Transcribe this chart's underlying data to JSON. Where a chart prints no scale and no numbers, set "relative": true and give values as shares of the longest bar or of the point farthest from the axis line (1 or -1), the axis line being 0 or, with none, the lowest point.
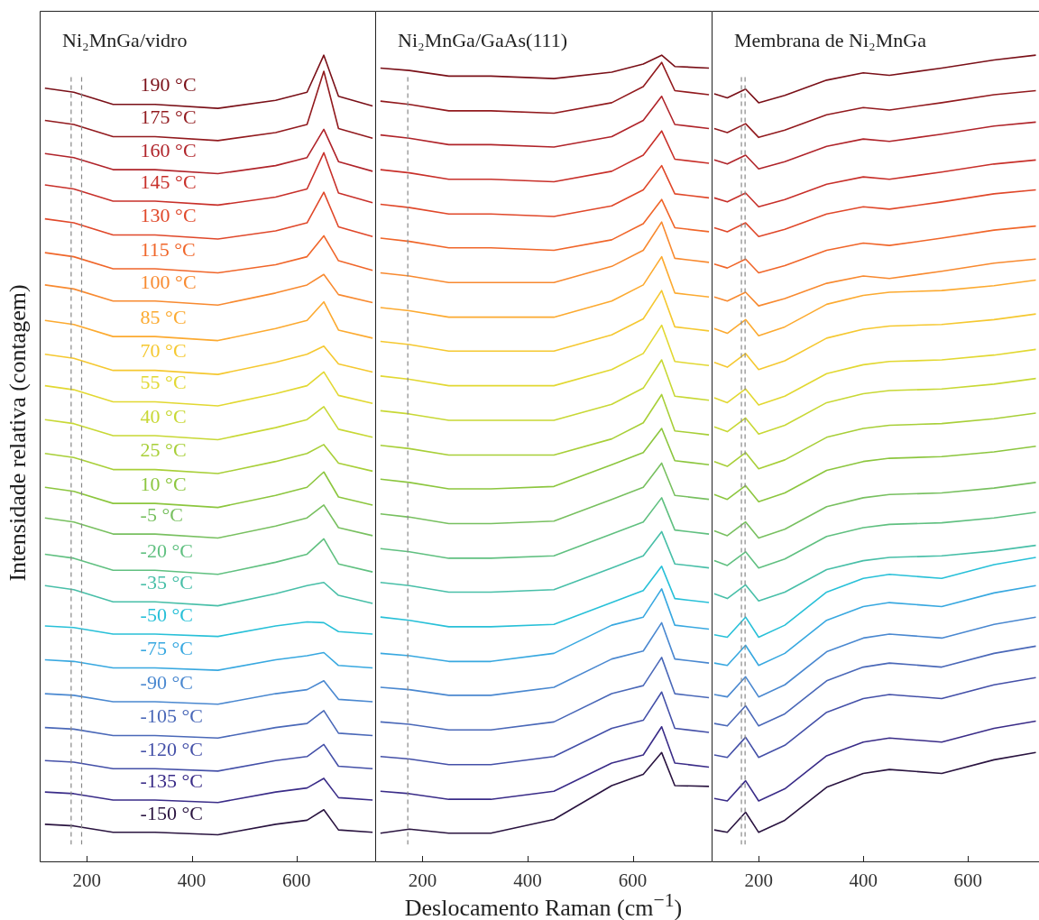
{
  "chart_data": [
    {
      "type": "line",
      "title": "Ni₂MnGa/vidro",
      "ylabel": "Intensidade relativa (contagem)",
      "relative": true,
      "tick_labels": "x",
      "grid": false,
      "legend": false,
      "xlim": [
        110,
        750
      ],
      "xticks": [
        200,
        400,
        600
      ],
      "x": [
        120,
        175,
        250,
        330,
        450,
        560,
        620,
        652,
        680,
        745
      ],
      "ref_lines": [
        {
          "axis": "x",
          "value": 170,
          "color": "#888888",
          "line_style": "dashed"
        },
        {
          "axis": "x",
          "value": 190,
          "color": "#888888",
          "line_style": "dashed"
        }
      ],
      "series": [
        {
          "name": "190 °C",
          "color": "#7a1018",
          "values": [
            0.959,
            0.954,
            0.939,
            0.939,
            0.934,
            0.944,
            0.954,
            1.0,
            0.949,
            0.937
          ]
        },
        {
          "name": "175 °C",
          "color": "#921a1e",
          "values": [
            0.919,
            0.914,
            0.899,
            0.899,
            0.894,
            0.904,
            0.914,
            0.98,
            0.909,
            0.897
          ]
        },
        {
          "name": "160 °C",
          "color": "#b0242a",
          "values": [
            0.878,
            0.873,
            0.858,
            0.858,
            0.853,
            0.863,
            0.873,
            0.908,
            0.868,
            0.856
          ]
        },
        {
          "name": "145 °C",
          "color": "#c8302a",
          "values": [
            0.839,
            0.834,
            0.819,
            0.819,
            0.814,
            0.824,
            0.834,
            0.879,
            0.829,
            0.817
          ]
        },
        {
          "name": "130 °C",
          "color": "#e0482a",
          "values": [
            0.797,
            0.792,
            0.777,
            0.777,
            0.772,
            0.782,
            0.792,
            0.83,
            0.787,
            0.775
          ]
        },
        {
          "name": "115 °C",
          "color": "#f0662a",
          "values": [
            0.755,
            0.75,
            0.735,
            0.735,
            0.73,
            0.74,
            0.75,
            0.776,
            0.745,
            0.733
          ]
        },
        {
          "name": "100 °C",
          "color": "#f88a30",
          "values": [
            0.715,
            0.71,
            0.695,
            0.695,
            0.69,
            0.705,
            0.715,
            0.728,
            0.703,
            0.693
          ]
        },
        {
          "name": "85 °C",
          "color": "#fcaa30",
          "values": [
            0.671,
            0.666,
            0.651,
            0.651,
            0.646,
            0.661,
            0.671,
            0.694,
            0.659,
            0.649
          ]
        },
        {
          "name": "70 °C",
          "color": "#f5c830",
          "values": [
            0.629,
            0.624,
            0.609,
            0.609,
            0.604,
            0.619,
            0.629,
            0.639,
            0.617,
            0.607
          ]
        },
        {
          "name": "55 °C",
          "color": "#e2d832",
          "values": [
            0.59,
            0.585,
            0.57,
            0.57,
            0.565,
            0.58,
            0.59,
            0.607,
            0.578,
            0.568
          ]
        },
        {
          "name": "40 °C",
          "color": "#c8d835",
          "values": [
            0.548,
            0.543,
            0.528,
            0.528,
            0.523,
            0.538,
            0.548,
            0.564,
            0.536,
            0.526
          ]
        },
        {
          "name": "25 °C",
          "color": "#a8cf38",
          "values": [
            0.506,
            0.501,
            0.486,
            0.486,
            0.481,
            0.496,
            0.506,
            0.517,
            0.494,
            0.484
          ]
        },
        {
          "name": "10 °C",
          "color": "#8cc63e",
          "values": [
            0.464,
            0.459,
            0.444,
            0.444,
            0.439,
            0.454,
            0.464,
            0.483,
            0.452,
            0.442
          ]
        },
        {
          "name": "-5 °C",
          "color": "#78c060",
          "values": [
            0.426,
            0.421,
            0.406,
            0.406,
            0.401,
            0.416,
            0.426,
            0.442,
            0.414,
            0.404
          ]
        },
        {
          "name": "-20 °C",
          "color": "#60c080",
          "values": [
            0.381,
            0.376,
            0.361,
            0.361,
            0.356,
            0.371,
            0.381,
            0.4,
            0.369,
            0.359
          ]
        },
        {
          "name": "-35 °C",
          "color": "#48bfa8",
          "values": [
            0.342,
            0.337,
            0.322,
            0.322,
            0.317,
            0.332,
            0.342,
            0.346,
            0.33,
            0.32
          ]
        },
        {
          "name": "-50 °C",
          "color": "#28c0d8",
          "values": [
            0.292,
            0.29,
            0.282,
            0.282,
            0.279,
            0.292,
            0.297,
            0.296,
            0.285,
            0.282
          ]
        },
        {
          "name": "-75 °C",
          "color": "#38a8e0",
          "values": [
            0.25,
            0.248,
            0.24,
            0.24,
            0.237,
            0.25,
            0.255,
            0.259,
            0.243,
            0.24
          ]
        },
        {
          "name": "-90 °C",
          "color": "#4a88d0",
          "values": [
            0.208,
            0.206,
            0.198,
            0.198,
            0.195,
            0.208,
            0.213,
            0.224,
            0.201,
            0.198
          ]
        },
        {
          "name": "-105 °C",
          "color": "#4a68b8",
          "values": [
            0.166,
            0.164,
            0.156,
            0.156,
            0.153,
            0.166,
            0.171,
            0.187,
            0.159,
            0.156
          ]
        },
        {
          "name": "-120 °C",
          "color": "#4450a8",
          "values": [
            0.125,
            0.123,
            0.115,
            0.115,
            0.112,
            0.125,
            0.13,
            0.145,
            0.118,
            0.115
          ]
        },
        {
          "name": "-135 °C",
          "color": "#3a2c88",
          "values": [
            0.086,
            0.084,
            0.076,
            0.076,
            0.073,
            0.086,
            0.091,
            0.103,
            0.079,
            0.076
          ]
        },
        {
          "name": "-150 °C",
          "color": "#2a1440",
          "values": [
            0.046,
            0.044,
            0.036,
            0.036,
            0.033,
            0.046,
            0.051,
            0.064,
            0.039,
            0.036
          ]
        }
      ]
    },
    {
      "type": "line",
      "title": "Ni₂MnGa/GaAs(111)",
      "xlabel": "Deslocamento Raman (cm$^{−1}$)",
      "relative": true,
      "tick_labels": "x",
      "grid": false,
      "legend": false,
      "xlim": [
        110,
        750
      ],
      "xticks": [
        200,
        400,
        600
      ],
      "x": [
        120,
        175,
        250,
        330,
        450,
        560,
        620,
        655,
        680,
        745
      ],
      "ref_lines": [
        {
          "axis": "x",
          "value": 172,
          "color": "#888888",
          "line_style": "dashed"
        }
      ],
      "series": [
        {
          "color": "#7a1018",
          "values": [
            0.984,
            0.981,
            0.974,
            0.974,
            0.971,
            0.979,
            0.989,
            1.0,
            0.986,
            0.984
          ]
        },
        {
          "color": "#921a1e",
          "values": [
            0.943,
            0.939,
            0.931,
            0.931,
            0.928,
            0.941,
            0.961,
            0.991,
            0.956,
            0.951
          ]
        },
        {
          "color": "#b0242a",
          "values": [
            0.901,
            0.897,
            0.889,
            0.889,
            0.886,
            0.899,
            0.919,
            0.949,
            0.914,
            0.909
          ]
        },
        {
          "color": "#c8302a",
          "values": [
            0.858,
            0.854,
            0.846,
            0.846,
            0.843,
            0.856,
            0.876,
            0.906,
            0.871,
            0.866
          ]
        },
        {
          "color": "#e0482a",
          "values": [
            0.815,
            0.811,
            0.803,
            0.803,
            0.8,
            0.813,
            0.833,
            0.863,
            0.828,
            0.823
          ]
        },
        {
          "color": "#f0662a",
          "values": [
            0.773,
            0.769,
            0.761,
            0.761,
            0.758,
            0.771,
            0.791,
            0.821,
            0.786,
            0.781
          ]
        },
        {
          "color": "#f88a30",
          "values": [
            0.73,
            0.726,
            0.718,
            0.718,
            0.718,
            0.738,
            0.758,
            0.793,
            0.748,
            0.743
          ]
        },
        {
          "color": "#fcaa30",
          "values": [
            0.687,
            0.683,
            0.675,
            0.675,
            0.675,
            0.695,
            0.715,
            0.75,
            0.705,
            0.7
          ]
        },
        {
          "color": "#f5c830",
          "values": [
            0.645,
            0.641,
            0.633,
            0.633,
            0.633,
            0.653,
            0.673,
            0.708,
            0.663,
            0.658
          ]
        },
        {
          "color": "#e2d832",
          "values": [
            0.602,
            0.598,
            0.59,
            0.59,
            0.59,
            0.61,
            0.63,
            0.665,
            0.62,
            0.615
          ]
        },
        {
          "color": "#c8d835",
          "values": [
            0.559,
            0.555,
            0.547,
            0.547,
            0.547,
            0.567,
            0.587,
            0.622,
            0.577,
            0.572
          ]
        },
        {
          "color": "#a8cf38",
          "values": [
            0.516,
            0.512,
            0.504,
            0.504,
            0.504,
            0.524,
            0.544,
            0.579,
            0.534,
            0.529
          ]
        },
        {
          "color": "#8cc63e",
          "values": [
            0.474,
            0.47,
            0.462,
            0.462,
            0.465,
            0.492,
            0.507,
            0.537,
            0.497,
            0.492
          ]
        },
        {
          "color": "#78c060",
          "values": [
            0.431,
            0.427,
            0.419,
            0.419,
            0.422,
            0.449,
            0.464,
            0.494,
            0.454,
            0.449
          ]
        },
        {
          "color": "#60c080",
          "values": [
            0.388,
            0.384,
            0.376,
            0.376,
            0.379,
            0.406,
            0.421,
            0.451,
            0.411,
            0.406
          ]
        },
        {
          "color": "#48bfa8",
          "values": [
            0.346,
            0.342,
            0.334,
            0.334,
            0.337,
            0.364,
            0.379,
            0.409,
            0.369,
            0.364
          ]
        },
        {
          "color": "#28c0d8",
          "values": [
            0.303,
            0.299,
            0.291,
            0.291,
            0.294,
            0.321,
            0.336,
            0.366,
            0.326,
            0.321
          ]
        },
        {
          "color": "#38a8e0",
          "values": [
            0.258,
            0.255,
            0.248,
            0.248,
            0.258,
            0.293,
            0.303,
            0.338,
            0.293,
            0.288
          ]
        },
        {
          "color": "#4a88d0",
          "values": [
            0.216,
            0.213,
            0.206,
            0.206,
            0.216,
            0.251,
            0.261,
            0.296,
            0.251,
            0.246
          ]
        },
        {
          "color": "#4a68b8",
          "values": [
            0.173,
            0.17,
            0.163,
            0.163,
            0.173,
            0.208,
            0.218,
            0.253,
            0.208,
            0.203
          ]
        },
        {
          "color": "#4450a8",
          "values": [
            0.13,
            0.127,
            0.12,
            0.12,
            0.13,
            0.165,
            0.175,
            0.21,
            0.165,
            0.16
          ]
        },
        {
          "color": "#3a2c88",
          "values": [
            0.087,
            0.084,
            0.077,
            0.077,
            0.087,
            0.122,
            0.132,
            0.167,
            0.122,
            0.117
          ]
        },
        {
          "color": "#2a1440",
          "values": [
            0.035,
            0.04,
            0.035,
            0.035,
            0.052,
            0.094,
            0.108,
            0.135,
            0.094,
            0.093
          ]
        }
      ]
    },
    {
      "type": "line",
      "title": "Membrana de Ni₂MnGa",
      "relative": true,
      "tick_labels": "x",
      "grid": false,
      "legend": false,
      "xlim": [
        110,
        736
      ],
      "xticks": [
        200,
        400,
        600
      ],
      "x": [
        115,
        140,
        175,
        200,
        250,
        330,
        400,
        450,
        550,
        650,
        730
      ],
      "ref_lines": [
        {
          "axis": "x",
          "value": 167,
          "color": "#888888",
          "line_style": "dashed"
        },
        {
          "axis": "x",
          "value": 174,
          "color": "#888888",
          "line_style": "dashed"
        }
      ],
      "series": [
        {
          "color": "#7a1018",
          "values": [
            0.952,
            0.947,
            0.958,
            0.941,
            0.95,
            0.969,
            0.978,
            0.975,
            0.984,
            0.994,
            1.0
          ]
        },
        {
          "color": "#921a1e",
          "values": [
            0.909,
            0.904,
            0.915,
            0.898,
            0.907,
            0.926,
            0.935,
            0.932,
            0.941,
            0.951,
            0.956
          ]
        },
        {
          "color": "#b0242a",
          "values": [
            0.87,
            0.865,
            0.876,
            0.859,
            0.868,
            0.887,
            0.896,
            0.893,
            0.902,
            0.912,
            0.917
          ]
        },
        {
          "color": "#c8302a",
          "values": [
            0.823,
            0.818,
            0.829,
            0.812,
            0.821,
            0.84,
            0.849,
            0.846,
            0.855,
            0.865,
            0.87
          ]
        },
        {
          "color": "#e0482a",
          "values": [
            0.786,
            0.781,
            0.792,
            0.775,
            0.784,
            0.803,
            0.812,
            0.809,
            0.818,
            0.828,
            0.833
          ]
        },
        {
          "color": "#f0662a",
          "values": [
            0.741,
            0.736,
            0.747,
            0.73,
            0.739,
            0.758,
            0.767,
            0.764,
            0.773,
            0.783,
            0.788
          ]
        },
        {
          "color": "#f88a30",
          "values": [
            0.7,
            0.695,
            0.706,
            0.689,
            0.698,
            0.717,
            0.726,
            0.723,
            0.732,
            0.742,
            0.747
          ]
        },
        {
          "color": "#fcaa30",
          "values": [
            0.661,
            0.655,
            0.672,
            0.652,
            0.663,
            0.691,
            0.702,
            0.706,
            0.708,
            0.714,
            0.721
          ]
        },
        {
          "color": "#f5c830",
          "values": [
            0.619,
            0.613,
            0.63,
            0.61,
            0.621,
            0.649,
            0.66,
            0.664,
            0.666,
            0.672,
            0.679
          ]
        },
        {
          "color": "#e2d832",
          "values": [
            0.575,
            0.569,
            0.586,
            0.566,
            0.577,
            0.605,
            0.616,
            0.62,
            0.622,
            0.628,
            0.635
          ]
        },
        {
          "color": "#c8d835",
          "values": [
            0.539,
            0.533,
            0.55,
            0.53,
            0.541,
            0.569,
            0.58,
            0.584,
            0.586,
            0.592,
            0.599
          ]
        },
        {
          "color": "#a8cf38",
          "values": [
            0.496,
            0.49,
            0.507,
            0.487,
            0.498,
            0.526,
            0.537,
            0.541,
            0.543,
            0.549,
            0.556
          ]
        },
        {
          "color": "#8cc63e",
          "values": [
            0.455,
            0.449,
            0.466,
            0.446,
            0.457,
            0.485,
            0.496,
            0.5,
            0.502,
            0.508,
            0.515
          ]
        },
        {
          "color": "#78c060",
          "values": [
            0.41,
            0.404,
            0.421,
            0.401,
            0.412,
            0.44,
            0.451,
            0.455,
            0.457,
            0.463,
            0.47
          ]
        },
        {
          "color": "#60c080",
          "values": [
            0.373,
            0.367,
            0.384,
            0.364,
            0.375,
            0.403,
            0.414,
            0.418,
            0.42,
            0.426,
            0.433
          ]
        },
        {
          "color": "#48bfa8",
          "values": [
            0.332,
            0.326,
            0.343,
            0.323,
            0.334,
            0.362,
            0.373,
            0.377,
            0.379,
            0.385,
            0.392
          ]
        },
        {
          "color": "#28c0d8",
          "values": [
            0.281,
            0.278,
            0.303,
            0.278,
            0.293,
            0.334,
            0.351,
            0.356,
            0.351,
            0.368,
            0.377
          ]
        },
        {
          "color": "#38a8e0",
          "values": [
            0.246,
            0.243,
            0.268,
            0.243,
            0.258,
            0.299,
            0.316,
            0.321,
            0.316,
            0.333,
            0.342
          ]
        },
        {
          "color": "#4a88d0",
          "values": [
            0.207,
            0.204,
            0.229,
            0.204,
            0.219,
            0.26,
            0.277,
            0.282,
            0.277,
            0.294,
            0.303
          ]
        },
        {
          "color": "#4a68b8",
          "values": [
            0.171,
            0.168,
            0.193,
            0.168,
            0.183,
            0.224,
            0.241,
            0.246,
            0.241,
            0.258,
            0.267
          ]
        },
        {
          "color": "#4450a8",
          "values": [
            0.132,
            0.129,
            0.154,
            0.129,
            0.144,
            0.185,
            0.202,
            0.207,
            0.202,
            0.219,
            0.228
          ]
        },
        {
          "color": "#3a2c88",
          "values": [
            0.078,
            0.075,
            0.1,
            0.075,
            0.09,
            0.131,
            0.148,
            0.153,
            0.148,
            0.165,
            0.174
          ]
        },
        {
          "color": "#2a1440",
          "values": [
            0.039,
            0.036,
            0.061,
            0.036,
            0.051,
            0.092,
            0.109,
            0.114,
            0.109,
            0.126,
            0.135
          ]
        }
      ]
    }
  ]
}
